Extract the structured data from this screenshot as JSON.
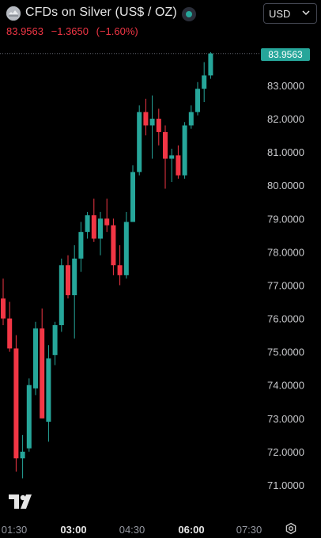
{
  "header": {
    "title": "CFDs on Silver (US$ / OZ)",
    "quote": {
      "last": "83.9563",
      "change": "−1.3650",
      "change_pct": "(−1.60%)"
    },
    "currency": "USD"
  },
  "price_axis": {
    "labels": [
      "83.0000",
      "82.0000",
      "81.0000",
      "80.0000",
      "79.0000",
      "78.0000",
      "77.0000",
      "76.0000",
      "75.0000",
      "74.0000",
      "73.0000",
      "72.0000",
      "71.0000"
    ],
    "last_price_label": "83.9563"
  },
  "time_axis": {
    "labels": [
      "01:30",
      "03:00",
      "04:30",
      "06:00",
      "07:30"
    ],
    "bold": [
      false,
      true,
      false,
      true,
      false
    ]
  },
  "colors": {
    "up": "#26a69a",
    "down": "#f23645",
    "background": "#000000",
    "text": "#d1d4dc"
  },
  "icons": {
    "symbol": "silver-coin-icon",
    "status": "market-status-icon",
    "logo": "tradingview-logo-icon",
    "settings": "gear-icon"
  },
  "chart_data": {
    "type": "candlestick",
    "ylim": [
      70.5,
      84.6
    ],
    "last": 83.9563,
    "candles": [
      {
        "o": 76.6,
        "h": 77.2,
        "l": 75.8,
        "c": 76.0
      },
      {
        "o": 76.0,
        "h": 76.5,
        "l": 75.0,
        "c": 75.1
      },
      {
        "o": 75.1,
        "h": 75.5,
        "l": 71.4,
        "c": 71.8
      },
      {
        "o": 71.8,
        "h": 72.5,
        "l": 71.2,
        "c": 72.0
      },
      {
        "o": 72.1,
        "h": 74.2,
        "l": 72.0,
        "c": 74.0
      },
      {
        "o": 73.9,
        "h": 75.9,
        "l": 73.7,
        "c": 75.7
      },
      {
        "o": 75.7,
        "h": 76.3,
        "l": 73.0,
        "c": 73.0
      },
      {
        "o": 72.9,
        "h": 75.2,
        "l": 72.3,
        "c": 74.8
      },
      {
        "o": 74.9,
        "h": 75.9,
        "l": 74.6,
        "c": 75.8
      },
      {
        "o": 75.8,
        "h": 77.8,
        "l": 75.6,
        "c": 77.6
      },
      {
        "o": 77.6,
        "h": 77.9,
        "l": 76.6,
        "c": 76.7
      },
      {
        "o": 76.7,
        "h": 78.2,
        "l": 75.4,
        "c": 77.8
      },
      {
        "o": 77.8,
        "h": 78.9,
        "l": 77.4,
        "c": 78.6
      },
      {
        "o": 78.6,
        "h": 79.2,
        "l": 78.4,
        "c": 79.1
      },
      {
        "o": 79.1,
        "h": 79.6,
        "l": 78.3,
        "c": 78.4
      },
      {
        "o": 78.4,
        "h": 79.2,
        "l": 77.9,
        "c": 79.0
      },
      {
        "o": 79.0,
        "h": 79.6,
        "l": 78.6,
        "c": 78.8
      },
      {
        "o": 78.8,
        "h": 79.0,
        "l": 77.3,
        "c": 77.6
      },
      {
        "o": 77.6,
        "h": 78.2,
        "l": 77.0,
        "c": 77.3
      },
      {
        "o": 77.3,
        "h": 79.2,
        "l": 77.2,
        "c": 78.9
      },
      {
        "o": 78.9,
        "h": 80.6,
        "l": 78.9,
        "c": 80.4
      },
      {
        "o": 80.4,
        "h": 82.4,
        "l": 80.3,
        "c": 82.2
      },
      {
        "o": 82.2,
        "h": 82.6,
        "l": 81.5,
        "c": 81.8
      },
      {
        "o": 81.8,
        "h": 82.7,
        "l": 80.8,
        "c": 82.0
      },
      {
        "o": 82.0,
        "h": 82.3,
        "l": 81.2,
        "c": 81.6
      },
      {
        "o": 81.6,
        "h": 81.8,
        "l": 79.9,
        "c": 80.8
      },
      {
        "o": 80.8,
        "h": 81.1,
        "l": 80.1,
        "c": 80.9
      },
      {
        "o": 80.9,
        "h": 81.2,
        "l": 80.2,
        "c": 80.3
      },
      {
        "o": 80.3,
        "h": 81.9,
        "l": 80.2,
        "c": 81.8
      },
      {
        "o": 81.8,
        "h": 82.4,
        "l": 81.7,
        "c": 82.2
      },
      {
        "o": 82.2,
        "h": 83.1,
        "l": 82.1,
        "c": 82.9
      },
      {
        "o": 82.9,
        "h": 83.7,
        "l": 82.5,
        "c": 83.3
      },
      {
        "o": 83.3,
        "h": 84.0,
        "l": 83.2,
        "c": 83.96
      }
    ]
  }
}
